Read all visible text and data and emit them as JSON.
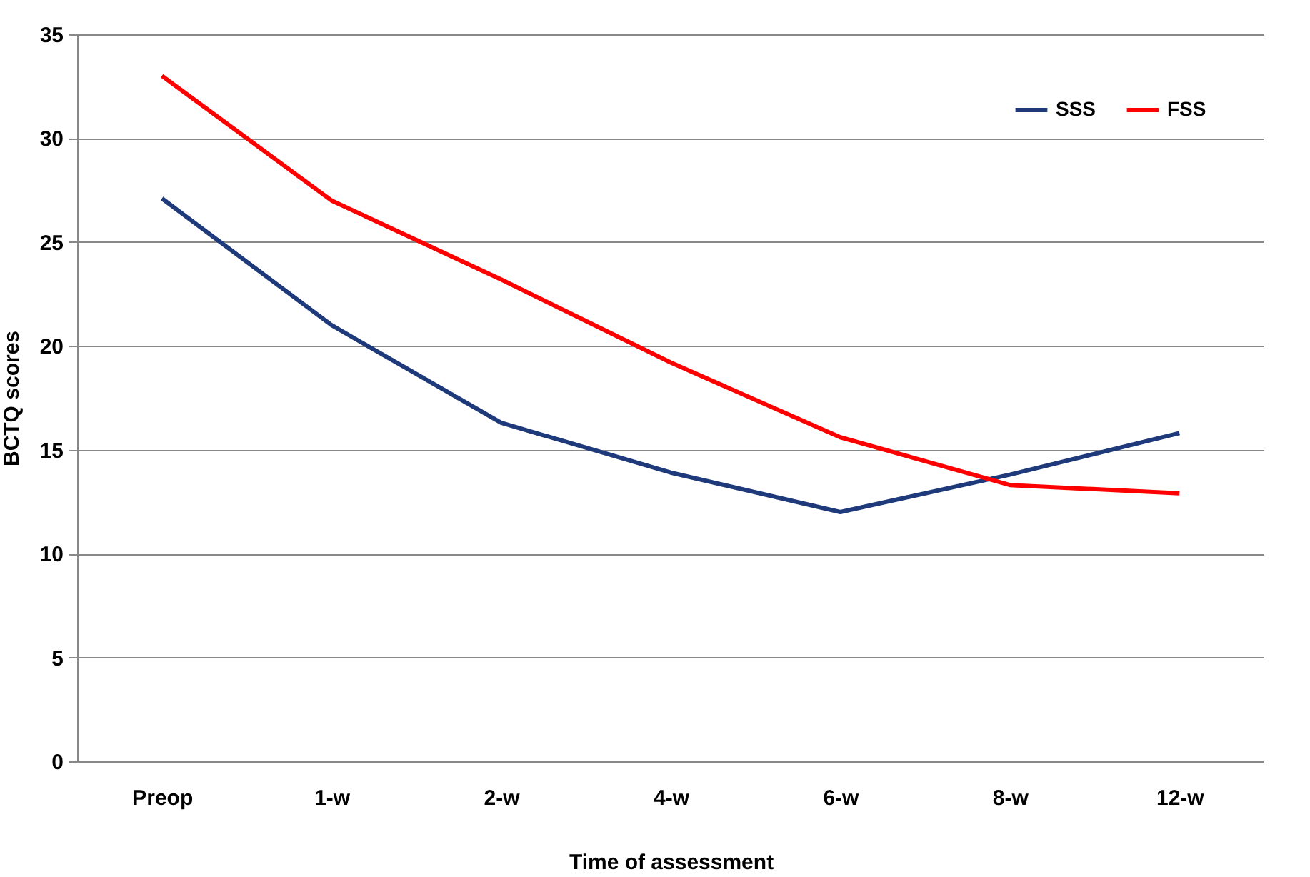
{
  "chart_data": {
    "type": "line",
    "xlabel": "Time of assessment",
    "ylabel": "BCTQ scores",
    "categories": [
      "Preop",
      "1-w",
      "2-w",
      "4-w",
      "6-w",
      "8-w",
      "12-w"
    ],
    "series": [
      {
        "name": "SSS",
        "color": "#1f3a7a",
        "values": [
          27.1,
          21.0,
          16.3,
          13.9,
          12.0,
          13.8,
          15.8
        ]
      },
      {
        "name": "FSS",
        "color": "#ff0000",
        "values": [
          33.0,
          27.0,
          23.2,
          19.2,
          15.6,
          13.3,
          12.9
        ]
      }
    ],
    "ylim": [
      0,
      35
    ],
    "yticks": [
      0,
      5,
      10,
      15,
      20,
      25,
      30,
      35
    ],
    "grid": "y",
    "legend": "top right",
    "marker": "none",
    "line_style": "solid"
  }
}
